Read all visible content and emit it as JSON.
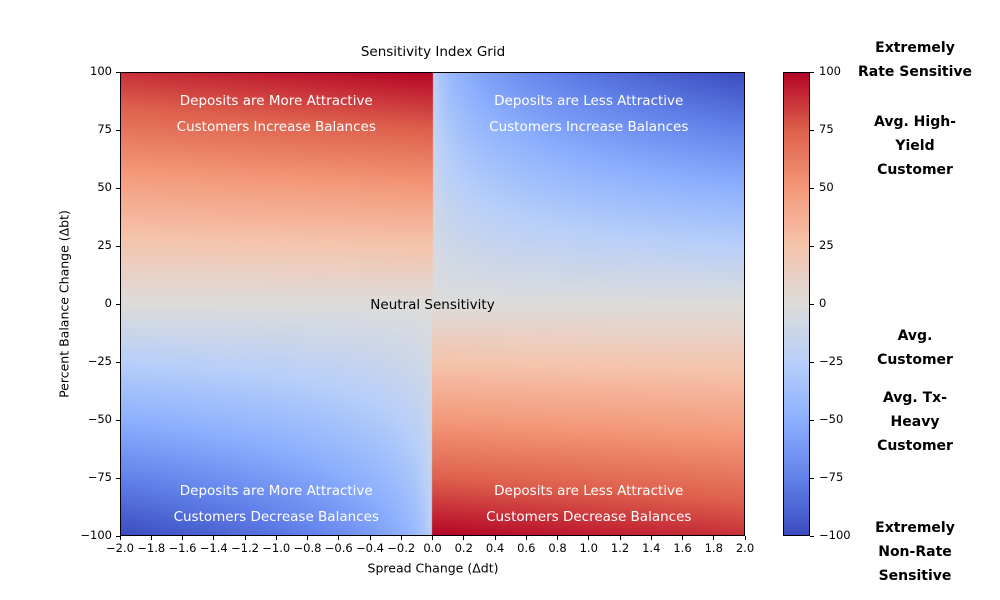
{
  "chart_data": {
    "type": "heatmap",
    "title": "Sensitivity Index Grid",
    "xlabel": "Spread Change (Δdt)",
    "ylabel": "Percent Balance Change (Δbt)",
    "xlim": [
      -2.0,
      2.0
    ],
    "ylim": [
      -100,
      100
    ],
    "value_range": [
      -100,
      100
    ],
    "grid": false,
    "x_ticks": {
      "values": [
        -2.0,
        -1.8,
        -1.6,
        -1.4,
        -1.2,
        -1.0,
        -0.8,
        -0.6,
        -0.4,
        -0.2,
        0.0,
        0.2,
        0.4,
        0.6,
        0.8,
        1.0,
        1.2,
        1.4,
        1.6,
        1.8,
        2.0
      ],
      "labels": [
        "−2.0",
        "−1.8",
        "−1.6",
        "−1.4",
        "−1.2",
        "−1.0",
        "−0.8",
        "−0.6",
        "−0.4",
        "−0.2",
        "0.0",
        "0.2",
        "0.4",
        "0.6",
        "0.8",
        "1.0",
        "1.2",
        "1.4",
        "1.6",
        "1.8",
        "2.0"
      ]
    },
    "y_ticks": {
      "values": [
        100,
        75,
        50,
        25,
        0,
        -25,
        -50,
        -75,
        -100
      ],
      "labels": [
        "100",
        "75",
        "50",
        "25",
        "0",
        "−25",
        "−50",
        "−75",
        "−100"
      ]
    },
    "surface_model": {
      "description": "Sensitivity index surface. Where the spread change opposes the balance change direction (-sign(Δdt)·Δbt ≥ 0) the index is rate-sensitive (red): |Δbt| with a slight fade with |Δdt|. Otherwise it is non-rate-sensitive (blue): −|Δbt|·(|Δdt|/2)^blue_exponent, so it whitens toward Δdt=0 and toward Δbt=0.",
      "red_fade": 0.12,
      "blue_exponent": 0.3
    },
    "colormap": {
      "name": "coolwarm",
      "stops": [
        [
          -1.0,
          "#3B4CC0"
        ],
        [
          -0.75,
          "#6282EA"
        ],
        [
          -0.5,
          "#8DB0FE"
        ],
        [
          -0.25,
          "#B8CFF9"
        ],
        [
          0.0,
          "#DDDCDB"
        ],
        [
          0.25,
          "#F5C4AD"
        ],
        [
          0.5,
          "#F4997A"
        ],
        [
          0.75,
          "#DE614D"
        ],
        [
          1.0,
          "#B40426"
        ]
      ]
    },
    "annotations": [
      {
        "id": "quad-top-left",
        "lines": [
          "Deposits are More Attractive",
          "Customers Increase Balances"
        ],
        "x": -1.0,
        "y": 82,
        "color": "#ffffff"
      },
      {
        "id": "quad-top-right",
        "lines": [
          "Deposits are Less Attractive",
          "Customers Increase Balances"
        ],
        "x": 1.0,
        "y": 82,
        "color": "#ffffff"
      },
      {
        "id": "neutral-center",
        "lines": [
          "Neutral Sensitivity"
        ],
        "x": 0.0,
        "y": -0.5,
        "color": "#000000"
      },
      {
        "id": "quad-bottom-left",
        "lines": [
          "Deposits are More Attractive",
          "Customers Decrease Balances"
        ],
        "x": -1.0,
        "y": -86,
        "color": "#ffffff"
      },
      {
        "id": "quad-bottom-right",
        "lines": [
          "Deposits are Less Attractive",
          "Customers Decrease Balances"
        ],
        "x": 1.0,
        "y": -86,
        "color": "#ffffff"
      }
    ],
    "colorbar": {
      "ticks": {
        "values": [
          100,
          75,
          50,
          25,
          0,
          -25,
          -50,
          -75,
          -100
        ],
        "labels": [
          "100",
          "75",
          "50",
          "25",
          "0",
          "−25",
          "−50",
          "−75",
          "−100"
        ]
      },
      "side_labels": [
        {
          "lines": [
            "Extremely",
            "Rate Sensitive"
          ],
          "value": 105
        },
        {
          "lines": [
            "Avg. High-",
            "Yield",
            "Customer"
          ],
          "value": 68
        },
        {
          "lines": [
            "Avg.",
            "Customer"
          ],
          "value": -19
        },
        {
          "lines": [
            "Avg. Tx-",
            "Heavy",
            "Customer"
          ],
          "value": -51
        },
        {
          "lines": [
            "Extremely",
            "Non-Rate",
            "Sensitive"
          ],
          "value": -107
        }
      ]
    }
  }
}
